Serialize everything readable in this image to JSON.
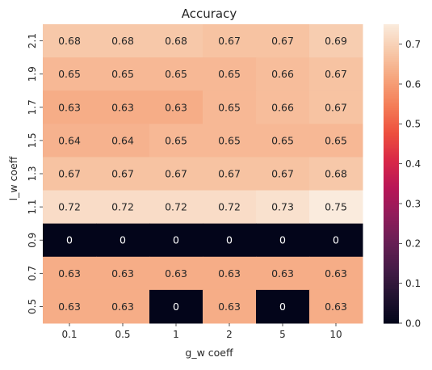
{
  "chart_data": {
    "type": "heatmap",
    "title": "Accuracy",
    "xlabel": "g_w coeff",
    "ylabel": "l_w coeff",
    "x_categories": [
      "0.1",
      "0.5",
      "1",
      "2",
      "5",
      "10"
    ],
    "y_categories": [
      "2.1",
      "1.9",
      "1.7",
      "1.5",
      "1.3",
      "1.1",
      "0.9",
      "0.7",
      "0.5"
    ],
    "values": [
      [
        0.68,
        0.68,
        0.68,
        0.67,
        0.67,
        0.69
      ],
      [
        0.65,
        0.65,
        0.65,
        0.65,
        0.66,
        0.67
      ],
      [
        0.63,
        0.63,
        0.63,
        0.65,
        0.66,
        0.67
      ],
      [
        0.64,
        0.64,
        0.65,
        0.65,
        0.65,
        0.65
      ],
      [
        0.67,
        0.67,
        0.67,
        0.67,
        0.67,
        0.68
      ],
      [
        0.72,
        0.72,
        0.72,
        0.72,
        0.73,
        0.75
      ],
      [
        0,
        0,
        0,
        0,
        0,
        0
      ],
      [
        0.63,
        0.63,
        0.63,
        0.63,
        0.63,
        0.63
      ],
      [
        0.63,
        0.63,
        0,
        0.63,
        0,
        0.63
      ]
    ],
    "value_labels": [
      [
        "0.68",
        "0.68",
        "0.68",
        "0.67",
        "0.67",
        "0.69"
      ],
      [
        "0.65",
        "0.65",
        "0.65",
        "0.65",
        "0.66",
        "0.67"
      ],
      [
        "0.63",
        "0.63",
        "0.63",
        "0.65",
        "0.66",
        "0.67"
      ],
      [
        "0.64",
        "0.64",
        "0.65",
        "0.65",
        "0.65",
        "0.65"
      ],
      [
        "0.67",
        "0.67",
        "0.67",
        "0.67",
        "0.67",
        "0.68"
      ],
      [
        "0.72",
        "0.72",
        "0.72",
        "0.72",
        "0.73",
        "0.75"
      ],
      [
        "0",
        "0",
        "0",
        "0",
        "0",
        "0"
      ],
      [
        "0.63",
        "0.63",
        "0.63",
        "0.63",
        "0.63",
        "0.63"
      ],
      [
        "0.63",
        "0.63",
        "0",
        "0.63",
        "0",
        "0.63"
      ]
    ],
    "colorbar": {
      "vmin": 0,
      "vmax": 0.75,
      "ticks": [
        "0.0",
        "0.1",
        "0.2",
        "0.3",
        "0.4",
        "0.5",
        "0.6",
        "0.7"
      ],
      "colormap": "rocket",
      "colormap_stops": [
        "#03051a",
        "#221331",
        "#451c47",
        "#691f55",
        "#921c5b",
        "#b91657",
        "#d92847",
        "#ed503e",
        "#f47d57",
        "#f6a47c",
        "#f7c9aa",
        "#faebdd"
      ]
    },
    "grid": false
  }
}
